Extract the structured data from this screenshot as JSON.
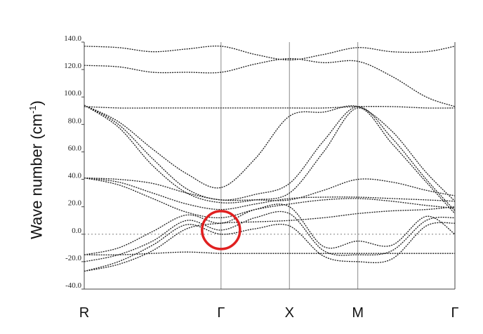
{
  "chart_data": {
    "type": "line",
    "ylabel": "Wave number (cm",
    "ylabel_sup": "-1",
    "ylabel_close": ")",
    "ylim": [
      -40,
      140
    ],
    "yticks": [
      "140.0",
      "120.0",
      "100.0",
      "80.0",
      "60.0",
      "40.0",
      "20.0",
      "0.0",
      "-20.0",
      "-40.0"
    ],
    "ytick_values": [
      140,
      120,
      100,
      80,
      60,
      40,
      20,
      0,
      -20,
      -40
    ],
    "x_points": [
      "R",
      "Γ",
      "X",
      "M",
      "Γ"
    ],
    "x_point_positions": [
      0,
      1,
      1.5,
      2,
      2.71
    ],
    "zero_line": true,
    "vertical_lines_at": [
      1,
      1.5,
      2
    ],
    "highlight": {
      "shape": "circle",
      "x": 1,
      "y": 3,
      "color": "#e02020"
    },
    "series": [
      {
        "values": [
          [
            0,
            137
          ],
          [
            0.25,
            136
          ],
          [
            0.5,
            133
          ],
          [
            0.75,
            135
          ],
          [
            1,
            137
          ],
          [
            1.25,
            131
          ],
          [
            1.5,
            127
          ],
          [
            1.75,
            131
          ],
          [
            2,
            136
          ],
          [
            2.25,
            133
          ],
          [
            2.5,
            133
          ],
          [
            2.71,
            137
          ]
        ]
      },
      {
        "values": [
          [
            0,
            123
          ],
          [
            0.25,
            122
          ],
          [
            0.5,
            118
          ],
          [
            0.75,
            118
          ],
          [
            1,
            118
          ],
          [
            1.25,
            124
          ],
          [
            1.5,
            128
          ],
          [
            1.75,
            125
          ],
          [
            2,
            126
          ],
          [
            2.25,
            115
          ],
          [
            2.5,
            100
          ],
          [
            2.71,
            93
          ]
        ]
      },
      {
        "values": [
          [
            0,
            93
          ],
          [
            0.25,
            92
          ],
          [
            0.5,
            92
          ],
          [
            0.75,
            92
          ],
          [
            1,
            92
          ],
          [
            1.25,
            92
          ],
          [
            1.5,
            92
          ],
          [
            1.75,
            92
          ],
          [
            2,
            93
          ],
          [
            2.25,
            93
          ],
          [
            2.5,
            92
          ],
          [
            2.71,
            92
          ]
        ]
      },
      {
        "values": [
          [
            0,
            94
          ],
          [
            0.25,
            82
          ],
          [
            0.5,
            62
          ],
          [
            0.75,
            44
          ],
          [
            1,
            34
          ],
          [
            1.25,
            55
          ],
          [
            1.5,
            86
          ],
          [
            1.75,
            89
          ],
          [
            2,
            93
          ],
          [
            2.25,
            75
          ],
          [
            2.5,
            45
          ],
          [
            2.71,
            24
          ]
        ]
      },
      {
        "values": [
          [
            0,
            94
          ],
          [
            0.25,
            80
          ],
          [
            0.5,
            55
          ],
          [
            0.75,
            33
          ],
          [
            1,
            25
          ],
          [
            1.25,
            29
          ],
          [
            1.5,
            37
          ],
          [
            1.75,
            68
          ],
          [
            2,
            93
          ],
          [
            2.25,
            70
          ],
          [
            2.5,
            40
          ],
          [
            2.71,
            17
          ]
        ]
      },
      {
        "values": [
          [
            0,
            94
          ],
          [
            0.25,
            78
          ],
          [
            0.5,
            50
          ],
          [
            0.75,
            30
          ],
          [
            1,
            23
          ],
          [
            1.25,
            25
          ],
          [
            1.5,
            30
          ],
          [
            1.75,
            60
          ],
          [
            2,
            92
          ],
          [
            2.25,
            66
          ],
          [
            2.5,
            38
          ],
          [
            2.71,
            15
          ]
        ]
      },
      {
        "values": [
          [
            0,
            41
          ],
          [
            0.25,
            40
          ],
          [
            0.5,
            37
          ],
          [
            0.75,
            30
          ],
          [
            1,
            25
          ],
          [
            1.25,
            25
          ],
          [
            1.5,
            25
          ],
          [
            1.75,
            32
          ],
          [
            2,
            40
          ],
          [
            2.25,
            38
          ],
          [
            2.5,
            32
          ],
          [
            2.71,
            28
          ]
        ]
      },
      {
        "values": [
          [
            0,
            41
          ],
          [
            0.25,
            38
          ],
          [
            0.5,
            30
          ],
          [
            0.75,
            22
          ],
          [
            1,
            18
          ],
          [
            1.25,
            22
          ],
          [
            1.5,
            26
          ],
          [
            1.75,
            27
          ],
          [
            2,
            27
          ],
          [
            2.25,
            26
          ],
          [
            2.5,
            25
          ],
          [
            2.71,
            24
          ]
        ]
      },
      {
        "values": [
          [
            0,
            41
          ],
          [
            0.25,
            36
          ],
          [
            0.5,
            26
          ],
          [
            0.75,
            16
          ],
          [
            1,
            12
          ],
          [
            1.25,
            18
          ],
          [
            1.5,
            22
          ],
          [
            1.75,
            25
          ],
          [
            2,
            26
          ],
          [
            2.25,
            24
          ],
          [
            2.5,
            21
          ],
          [
            2.71,
            19
          ]
        ]
      },
      {
        "values": [
          [
            0,
            -15
          ],
          [
            0.25,
            -15
          ],
          [
            0.5,
            -14
          ],
          [
            0.75,
            -13
          ],
          [
            1,
            -14
          ],
          [
            1.25,
            -14
          ],
          [
            1.5,
            -14
          ],
          [
            1.75,
            -14
          ],
          [
            2,
            -14
          ],
          [
            2.25,
            -14
          ],
          [
            2.5,
            -14
          ],
          [
            2.71,
            -14
          ]
        ]
      },
      {
        "values": [
          [
            0,
            -27
          ],
          [
            0.25,
            -22
          ],
          [
            0.5,
            -12
          ],
          [
            0.75,
            4
          ],
          [
            1,
            8
          ],
          [
            1.25,
            9
          ],
          [
            1.5,
            10
          ],
          [
            1.75,
            12
          ],
          [
            2,
            15
          ],
          [
            2.25,
            17
          ],
          [
            2.5,
            18
          ],
          [
            2.71,
            20
          ]
        ]
      },
      {
        "values": [
          [
            0,
            -27
          ],
          [
            0.25,
            -20
          ],
          [
            0.5,
            -8
          ],
          [
            0.75,
            7
          ],
          [
            1,
            0
          ],
          [
            1.25,
            4
          ],
          [
            1.5,
            6
          ],
          [
            1.75,
            -16
          ],
          [
            2,
            -20
          ],
          [
            2.25,
            -18
          ],
          [
            2.5,
            6
          ],
          [
            2.71,
            8
          ]
        ]
      },
      {
        "values": [
          [
            0,
            -20
          ],
          [
            0.25,
            -15
          ],
          [
            0.5,
            -5
          ],
          [
            0.75,
            10
          ],
          [
            1,
            3
          ],
          [
            1.25,
            12
          ],
          [
            1.5,
            15
          ],
          [
            1.75,
            -12
          ],
          [
            2,
            -15
          ],
          [
            2.25,
            -12
          ],
          [
            2.5,
            10
          ],
          [
            2.71,
            12
          ]
        ]
      },
      {
        "values": [
          [
            0,
            -15
          ],
          [
            0.25,
            -10
          ],
          [
            0.5,
            2
          ],
          [
            0.75,
            14
          ],
          [
            1,
            8
          ],
          [
            1.25,
            18
          ],
          [
            1.5,
            20
          ],
          [
            1.75,
            -9
          ],
          [
            2,
            -5
          ],
          [
            2.25,
            -8
          ],
          [
            2.5,
            13
          ],
          [
            2.71,
            0
          ]
        ]
      }
    ]
  }
}
